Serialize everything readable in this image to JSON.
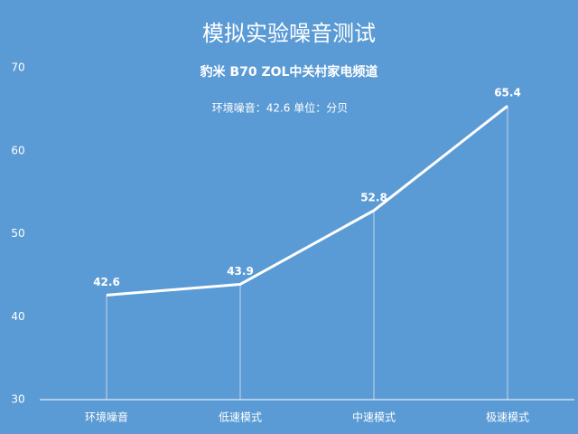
{
  "chart_data": {
    "type": "line",
    "title": "模拟实验噪音测试",
    "subtitle": "豹米 B70 ZOL中关村家电频道",
    "annotation": "环境噪音：42.6 单位：分贝",
    "categories": [
      "环境噪音",
      "低速模式",
      "中速模式",
      "极速模式"
    ],
    "values": [
      42.6,
      43.9,
      52.8,
      65.4
    ],
    "color": "#ffffff",
    "ylim": [
      30,
      70
    ],
    "yticks": [
      30,
      40,
      50,
      60,
      70
    ],
    "grid": false
  }
}
